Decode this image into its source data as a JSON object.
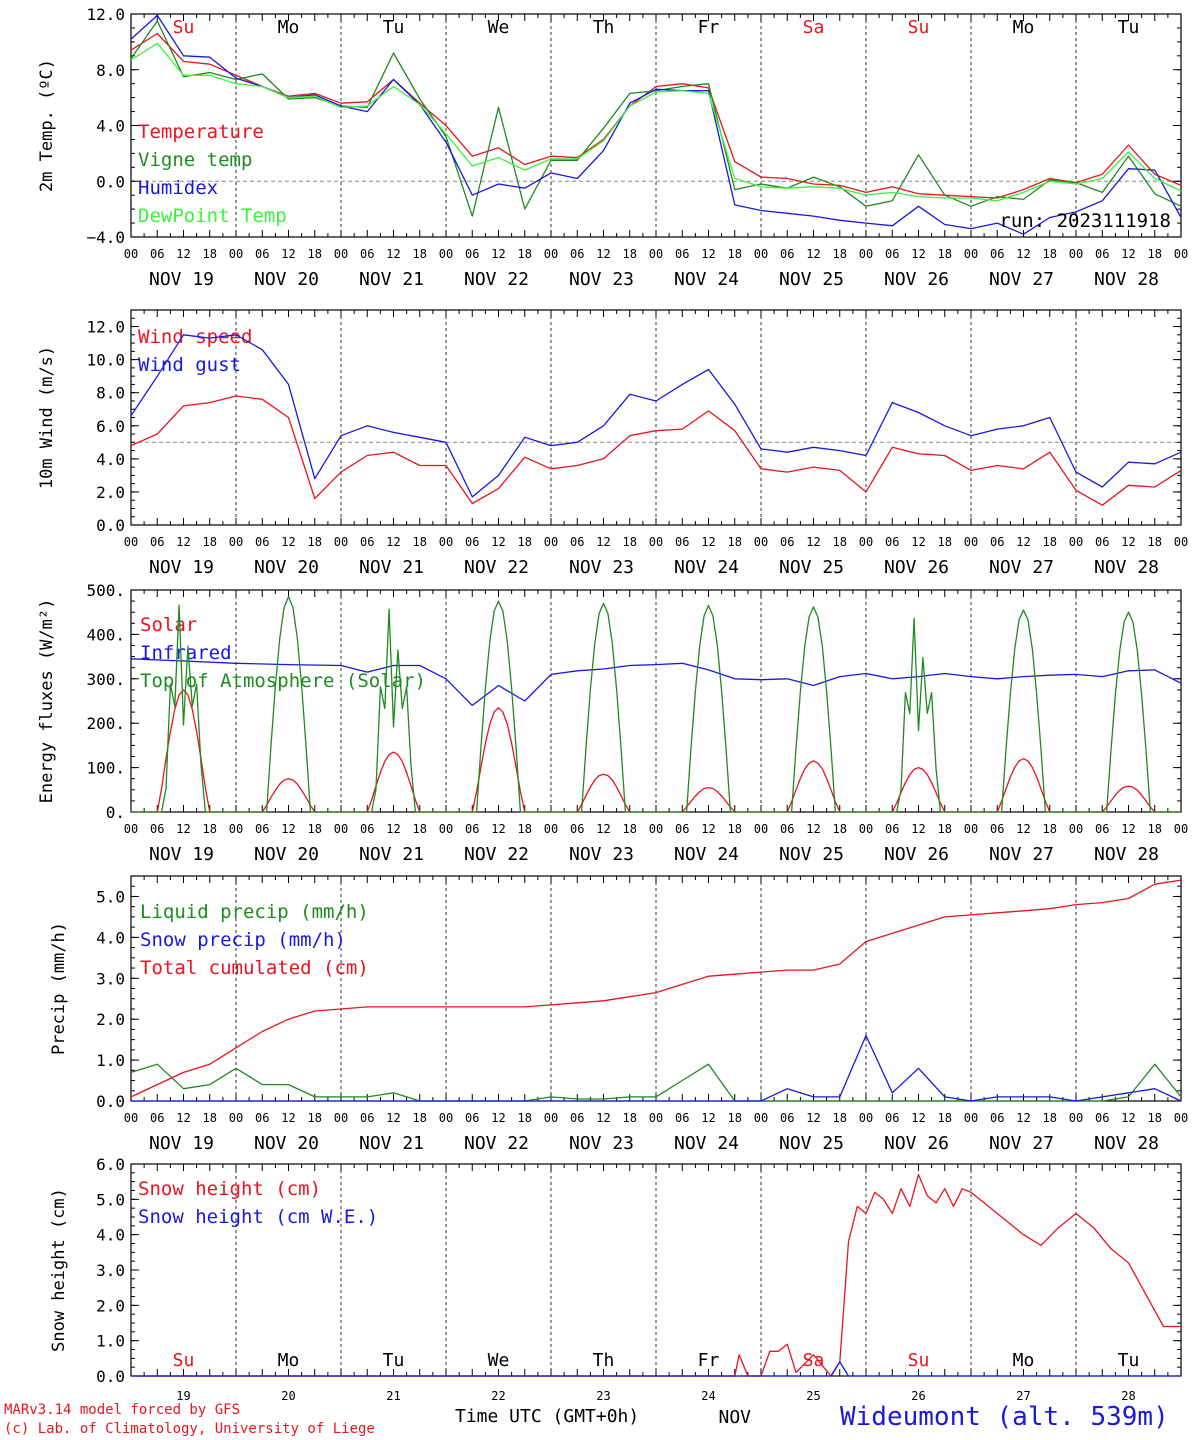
{
  "colors": {
    "red": "#e8141e",
    "green": "#1f8a1f",
    "blue": "#1818e0",
    "lightgreen": "#3ef03e"
  },
  "days": {
    "top_dates": [
      "NOV 19",
      "NOV 20",
      "NOV 21",
      "NOV 22",
      "NOV 23",
      "NOV 24",
      "NOV 25",
      "NOV 26",
      "NOV 27",
      "NOV 28"
    ],
    "weekdays": [
      "Su",
      "Mo",
      "Tu",
      "We",
      "Th",
      "Fr",
      "Sa",
      "Su",
      "Mo",
      "Tu"
    ],
    "weekday_colors": [
      "#e8141e",
      "#000000",
      "#000000",
      "#000000",
      "#000000",
      "#000000",
      "#e8141e",
      "#e8141e",
      "#000000",
      "#000000"
    ],
    "bottom_numbers": [
      "19",
      "20",
      "21",
      "22",
      "23",
      "24",
      "25",
      "26",
      "27",
      "28"
    ],
    "bottom_month": "NOV",
    "hours": [
      "00",
      "06",
      "12",
      "18"
    ]
  },
  "footer": {
    "model": "MARv3.14 model forced by GFS",
    "lab": "(c) Lab. of Climatology, University of Liege",
    "xlabel": "Time UTC (GMT+0h)",
    "station": "Wideumont (alt. 539m)"
  },
  "chart_data": [
    {
      "type": "line",
      "ylabel": "2m Temp. (ºC)",
      "ylim": [
        -4,
        12
      ],
      "yticks": [
        "12.0",
        "8.0",
        "4.0",
        "0.0",
        "−4.0"
      ],
      "ytick_values": [
        12,
        8,
        4,
        0,
        -4
      ],
      "ref_line": 0,
      "annotation": "run: 2023111918",
      "x_hours": [
        0,
        6,
        12,
        18,
        24,
        30,
        36,
        42,
        48,
        54,
        60,
        66,
        72,
        78,
        84,
        90,
        96,
        102,
        108,
        114,
        120,
        126,
        132,
        138,
        144,
        150,
        156,
        162,
        168,
        174,
        180,
        186,
        192,
        198,
        204,
        210,
        216,
        222,
        228,
        234,
        240
      ],
      "series": [
        {
          "name": "Temperature",
          "color": "red",
          "values": [
            9.4,
            10.6,
            8.6,
            8.4,
            7.6,
            6.8,
            6.1,
            6.3,
            5.6,
            5.7,
            7.3,
            5.6,
            4,
            1.8,
            2.4,
            1.2,
            1.8,
            1.7,
            3,
            5.4,
            6.8,
            7,
            6.7,
            1.4,
            0.3,
            0.2,
            -0.2,
            -0.3,
            -0.8,
            -0.4,
            -0.9,
            -1,
            -1.1,
            -1.2,
            -0.6,
            0.2,
            -0.1,
            0.5,
            2.6,
            0.5,
            -0.3
          ]
        },
        {
          "name": "Vigne temp",
          "color": "green",
          "values": [
            8.8,
            11.5,
            7.5,
            7.8,
            7.3,
            7.7,
            5.9,
            6,
            5.4,
            5.3,
            9.2,
            5.9,
            3.2,
            -2.5,
            5.3,
            -2,
            1.5,
            1.5,
            3.8,
            6.3,
            6.5,
            6.8,
            7,
            -0.6,
            -0.2,
            -0.5,
            0.3,
            -0.4,
            -1.8,
            -1.4,
            1.9,
            -1,
            -1.8,
            -1.1,
            -1.3,
            0.1,
            -0.1,
            -0.8,
            1.8,
            -0.9,
            -1.8
          ]
        },
        {
          "name": "Humidex",
          "color": "blue",
          "values": [
            10.2,
            11.9,
            9,
            8.9,
            7.4,
            6.8,
            6,
            6.2,
            5.4,
            5,
            7.3,
            5.5,
            2.8,
            -1,
            -0.2,
            -0.5,
            0.6,
            0.2,
            2.2,
            5.6,
            6.6,
            6.5,
            6.5,
            -1.7,
            -2.1,
            -2.3,
            -2.5,
            -2.8,
            -3,
            -3.2,
            -1.8,
            -3.1,
            -3.4,
            -3,
            -3.8,
            -2.6,
            -2.2,
            -1.4,
            0.9,
            0.8,
            -2.6
          ]
        },
        {
          "name": "DewPoint Temp",
          "color": "lightgreen",
          "values": [
            8.7,
            9.9,
            7.6,
            7.6,
            7,
            6.8,
            6,
            6.1,
            5.3,
            5.4,
            6.8,
            5.5,
            3.4,
            1.1,
            1.7,
            0.8,
            1.6,
            1.6,
            2.9,
            5.4,
            6.4,
            6.5,
            6.3,
            0.2,
            -0.4,
            -0.5,
            -0.4,
            -0.5,
            -1,
            -0.8,
            -1.1,
            -1.2,
            -1.2,
            -1.4,
            -0.8,
            0,
            -0.2,
            0.2,
            2.1,
            0.2,
            -0.7
          ]
        }
      ]
    },
    {
      "type": "line",
      "ylabel": "10m Wind (m/s)",
      "ylim": [
        0,
        13
      ],
      "yticks": [
        "12.0",
        "10.0",
        "8.0",
        "6.0",
        "4.0",
        "2.0",
        "0.0"
      ],
      "ytick_values": [
        12,
        10,
        8,
        6,
        4,
        2,
        0
      ],
      "ref_line": 5,
      "annotation": "",
      "x_hours": [
        0,
        6,
        12,
        18,
        24,
        30,
        36,
        42,
        48,
        54,
        60,
        66,
        72,
        78,
        84,
        90,
        96,
        102,
        108,
        114,
        120,
        126,
        132,
        138,
        144,
        150,
        156,
        162,
        168,
        174,
        180,
        186,
        192,
        198,
        204,
        210,
        216,
        222,
        228,
        234,
        240
      ],
      "series": [
        {
          "name": "Wind speed",
          "color": "red",
          "values": [
            4.8,
            5.5,
            7.2,
            7.4,
            7.8,
            7.6,
            6.5,
            1.6,
            3.2,
            4.2,
            4.4,
            3.6,
            3.6,
            1.3,
            2.2,
            4.1,
            3.4,
            3.6,
            4,
            5.4,
            5.7,
            5.8,
            6.9,
            5.7,
            3.4,
            3.2,
            3.5,
            3.3,
            2,
            4.7,
            4.3,
            4.2,
            3.3,
            3.6,
            3.4,
            4.4,
            2.1,
            1.2,
            2.4,
            2.3,
            3.3
          ]
        },
        {
          "name": "Wind gust",
          "color": "blue",
          "values": [
            6.6,
            9,
            11.5,
            11.3,
            11.5,
            10.6,
            8.5,
            2.8,
            5.4,
            6,
            5.6,
            5.3,
            5,
            1.7,
            3,
            5.3,
            4.8,
            5,
            6,
            7.9,
            7.5,
            8.5,
            9.4,
            7.3,
            4.6,
            4.4,
            4.7,
            4.5,
            4.2,
            7.4,
            6.8,
            6,
            5.4,
            5.8,
            6,
            6.5,
            3.2,
            2.3,
            3.8,
            3.7,
            4.4
          ]
        }
      ]
    },
    {
      "type": "line",
      "ylabel": "Energy fluxes (W/m²)",
      "ylim": [
        0,
        500
      ],
      "yticks": [
        "500.",
        "400.",
        "300.",
        "200.",
        "100.",
        "0."
      ],
      "ytick_values": [
        500,
        400,
        300,
        200,
        100,
        0
      ],
      "annotation": "",
      "series": [
        {
          "name": "Solar",
          "color": "red",
          "peaks": [
            275,
            75,
            135,
            235,
            85,
            55,
            115,
            100,
            120,
            58
          ]
        },
        {
          "name": "Infrared",
          "color": "blue",
          "x_hours": [
            0,
            12,
            24,
            36,
            48,
            54,
            60,
            66,
            72,
            78,
            84,
            90,
            96,
            102,
            108,
            114,
            120,
            126,
            132,
            138,
            144,
            150,
            156,
            162,
            168,
            174,
            180,
            186,
            192,
            198,
            204,
            210,
            216,
            222,
            228,
            234,
            240
          ],
          "values": [
            345,
            340,
            335,
            332,
            330,
            315,
            330,
            330,
            300,
            240,
            285,
            250,
            310,
            318,
            322,
            330,
            332,
            335,
            320,
            300,
            298,
            300,
            285,
            305,
            312,
            300,
            305,
            312,
            305,
            300,
            305,
            308,
            310,
            305,
            318,
            320,
            290
          ]
        },
        {
          "name": "Top of Atmosphere (Solar)",
          "color": "green",
          "peaks": [
            490,
            485,
            480,
            475,
            470,
            465,
            462,
            458,
            455,
            450
          ]
        }
      ]
    },
    {
      "type": "line",
      "ylabel": "Precip (mm/h)",
      "ylim": [
        0,
        5.5
      ],
      "yticks": [
        "5.0",
        "4.0",
        "3.0",
        "2.0",
        "1.0",
        "0.0"
      ],
      "ytick_values": [
        5,
        4,
        3,
        2,
        1,
        0
      ],
      "annotation": "",
      "x_hours": [
        0,
        6,
        12,
        18,
        24,
        30,
        36,
        42,
        48,
        54,
        60,
        66,
        72,
        78,
        84,
        90,
        96,
        102,
        108,
        114,
        120,
        126,
        132,
        138,
        144,
        150,
        156,
        162,
        168,
        174,
        180,
        186,
        192,
        198,
        204,
        210,
        216,
        222,
        228,
        234,
        240
      ],
      "series": [
        {
          "name": "Liquid precip (mm/h)",
          "color": "green",
          "values": [
            0.7,
            0.9,
            0.3,
            0.4,
            0.8,
            0.4,
            0.4,
            0.1,
            0.1,
            0.1,
            0.2,
            0,
            0,
            0,
            0,
            0,
            0.1,
            0.05,
            0.05,
            0.1,
            0.1,
            0.5,
            0.9,
            0,
            0,
            0,
            0,
            0,
            0,
            0,
            0,
            0,
            0,
            0,
            0,
            0,
            0,
            0,
            0.1,
            0.9,
            0.1
          ]
        },
        {
          "name": "Snow precip (mm/h)",
          "color": "blue",
          "values": [
            0,
            0,
            0,
            0,
            0,
            0,
            0,
            0,
            0,
            0,
            0,
            0,
            0,
            0,
            0,
            0,
            0,
            0,
            0,
            0,
            0,
            0,
            0,
            0,
            0,
            0.3,
            0.1,
            0.1,
            1.6,
            0.2,
            0.8,
            0.1,
            0,
            0.1,
            0.1,
            0.1,
            0,
            0.1,
            0.2,
            0.3,
            0
          ]
        },
        {
          "name": "Total cumulated (cm)",
          "color": "red",
          "values": [
            0.1,
            0.4,
            0.7,
            0.9,
            1.3,
            1.7,
            2,
            2.2,
            2.25,
            2.3,
            2.3,
            2.3,
            2.3,
            2.3,
            2.3,
            2.3,
            2.35,
            2.4,
            2.45,
            2.55,
            2.65,
            2.85,
            3.05,
            3.1,
            3.15,
            3.2,
            3.2,
            3.35,
            3.9,
            4.1,
            4.3,
            4.5,
            4.55,
            4.6,
            4.65,
            4.7,
            4.8,
            4.85,
            4.95,
            5.3,
            5.4
          ]
        }
      ]
    },
    {
      "type": "line",
      "ylabel": "Snow height (cm)",
      "ylim": [
        0,
        6
      ],
      "yticks": [
        "6.0",
        "5.0",
        "4.0",
        "3.0",
        "2.0",
        "1.0",
        "0.0"
      ],
      "ytick_values": [
        6,
        5,
        4,
        3,
        2,
        1,
        0
      ],
      "annotation": "",
      "x_hours": [
        0,
        24,
        48,
        72,
        96,
        120,
        138,
        139,
        141,
        144,
        146,
        148,
        150,
        152,
        156,
        160,
        162,
        164,
        166,
        168,
        170,
        172,
        174,
        176,
        178,
        180,
        182,
        184,
        186,
        188,
        190,
        192,
        196,
        200,
        204,
        208,
        212,
        216,
        220,
        224,
        228,
        232,
        236,
        240
      ],
      "series": [
        {
          "name": "Snow height (cm)",
          "color": "red",
          "values": [
            0,
            0,
            0,
            0,
            0,
            0,
            0,
            0.6,
            0,
            0,
            0.7,
            0.7,
            0.9,
            0.1,
            0.6,
            0,
            0.4,
            3.8,
            4.8,
            4.6,
            5.2,
            5,
            4.6,
            5.3,
            4.8,
            5.7,
            5.1,
            4.9,
            5.3,
            4.8,
            5.3,
            5.2,
            4.8,
            4.4,
            4,
            3.7,
            4.2,
            4.6,
            4.2,
            3.6,
            3.2,
            2.3,
            1.4,
            1.4
          ]
        },
        {
          "name": "Snow height (cm W.E.)",
          "color": "blue",
          "values": [
            0,
            0,
            0,
            0,
            0,
            0,
            0,
            0,
            0,
            0,
            0,
            0,
            0,
            0,
            0,
            0,
            0.4,
            0,
            0,
            0,
            0,
            0,
            0,
            0,
            0,
            0,
            0,
            0,
            0,
            0,
            0,
            0,
            0,
            0,
            0,
            0,
            0,
            0,
            0,
            0,
            0,
            0,
            0,
            0
          ]
        }
      ]
    }
  ]
}
